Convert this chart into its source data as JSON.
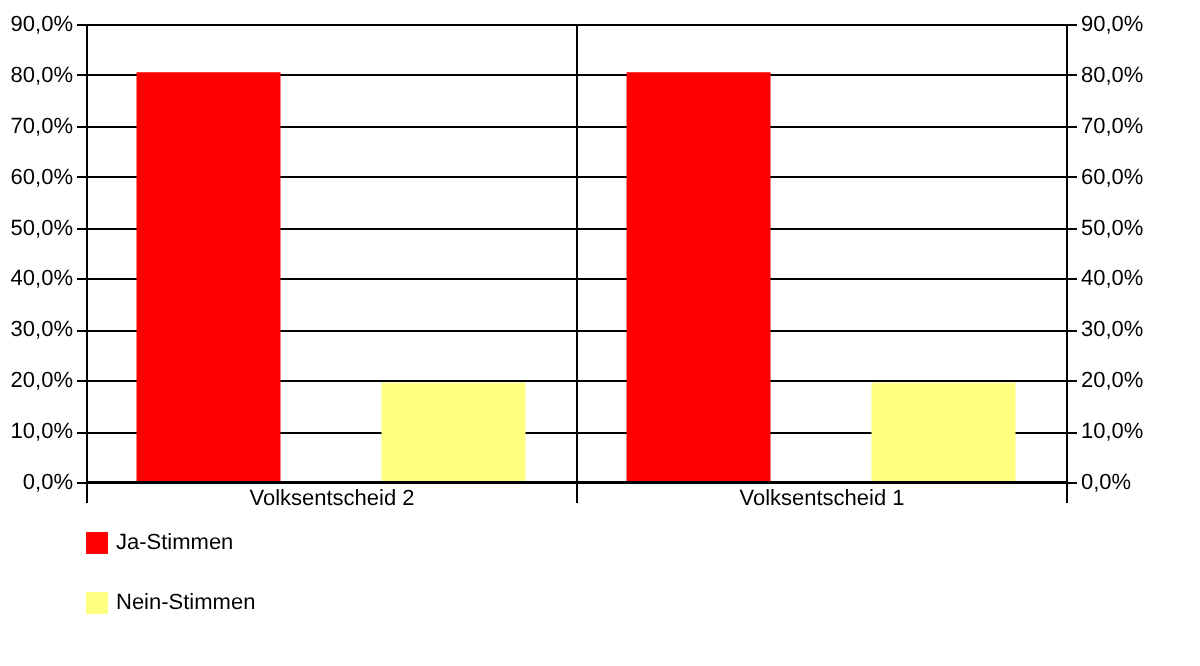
{
  "chart_data": {
    "type": "bar",
    "categories": [
      "Volksentscheid 2",
      "Volksentscheid 1"
    ],
    "series": [
      {
        "name": "Ja-Stimmen",
        "color": "#ff0000",
        "values": [
          80.5,
          80.5
        ]
      },
      {
        "name": "Nein-Stimmen",
        "color": "#ffff80",
        "values": [
          19.5,
          19.5
        ]
      }
    ],
    "ylim": [
      0,
      90
    ],
    "yticks": [
      {
        "value": 0,
        "label": "0,0%"
      },
      {
        "value": 10,
        "label": "10,0%"
      },
      {
        "value": 20,
        "label": "20,0%"
      },
      {
        "value": 30,
        "label": "30,0%"
      },
      {
        "value": 40,
        "label": "40,0%"
      },
      {
        "value": 50,
        "label": "50,0%"
      },
      {
        "value": 60,
        "label": "60,0%"
      },
      {
        "value": 70,
        "label": "70,0%"
      },
      {
        "value": 80,
        "label": "80,0%"
      },
      {
        "value": 90,
        "label": "90,0%"
      }
    ],
    "y2lim": [
      0,
      90
    ],
    "y2ticks": [
      {
        "value": 0,
        "label": "0,0%"
      },
      {
        "value": 10,
        "label": "10,0%"
      },
      {
        "value": 20,
        "label": "20,0%"
      },
      {
        "value": 30,
        "label": "30,0%"
      },
      {
        "value": 40,
        "label": "40,0%"
      },
      {
        "value": 50,
        "label": "50,0%"
      },
      {
        "value": 60,
        "label": "60,0%"
      },
      {
        "value": 70,
        "label": "70,0%"
      },
      {
        "value": 80,
        "label": "80,0%"
      },
      {
        "value": 90,
        "label": "90,0%"
      }
    ],
    "grid": true,
    "legend": "bottom"
  }
}
